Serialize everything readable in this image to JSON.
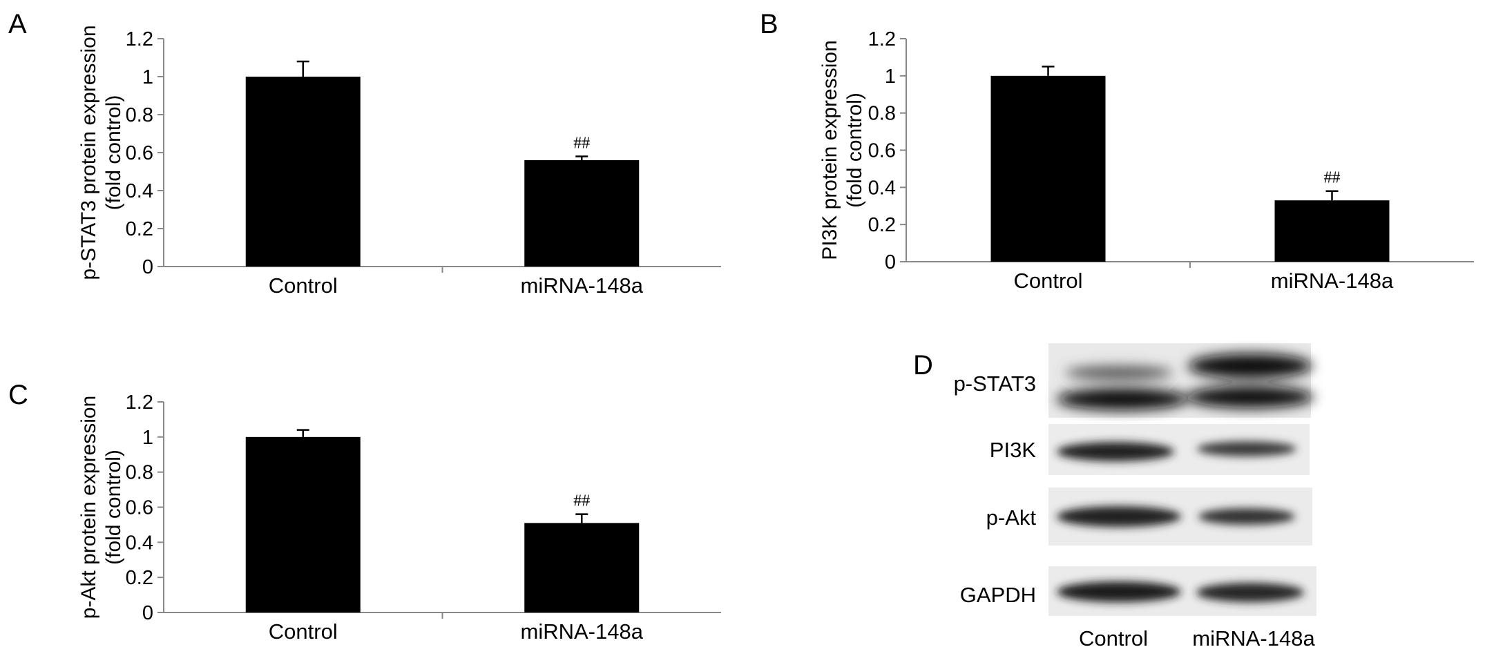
{
  "chart_data": [
    {
      "panel": "A",
      "type": "bar",
      "categories": [
        "Control",
        "miRNA-148a"
      ],
      "values": [
        1.0,
        0.56
      ],
      "errors": [
        0.08,
        0.02
      ],
      "annotations": [
        "",
        "##"
      ],
      "ylabel": [
        "p-STAT3 protein expression",
        "(fold control)"
      ],
      "yticks": [
        "0",
        "0.2",
        "0.4",
        "0.6",
        "0.8",
        "1",
        "1.2"
      ],
      "ylim": [
        0,
        1.2
      ],
      "bar_color": "#000000",
      "grid": false
    },
    {
      "panel": "B",
      "type": "bar",
      "categories": [
        "Control",
        "miRNA-148a"
      ],
      "values": [
        1.0,
        0.33
      ],
      "errors": [
        0.05,
        0.05
      ],
      "annotations": [
        "",
        "##"
      ],
      "ylabel": [
        "PI3K protein expression",
        "(fold control)"
      ],
      "yticks": [
        "0",
        "0.2",
        "0.4",
        "0.6",
        "0.8",
        "1",
        "1.2"
      ],
      "ylim": [
        0,
        1.2
      ],
      "bar_color": "#000000",
      "grid": false
    },
    {
      "panel": "C",
      "type": "bar",
      "categories": [
        "Control",
        "miRNA-148a"
      ],
      "values": [
        1.0,
        0.51
      ],
      "errors": [
        0.04,
        0.05
      ],
      "annotations": [
        "",
        "##"
      ],
      "ylabel": [
        "p-Akt protein expression",
        "(fold control)"
      ],
      "yticks": [
        "0",
        "0.2",
        "0.4",
        "0.6",
        "0.8",
        "1",
        "1.2"
      ],
      "ylim": [
        0,
        1.2
      ],
      "bar_color": "#000000",
      "grid": false
    }
  ],
  "blot": {
    "panel": "D",
    "rows": [
      "p-STAT3",
      "PI3K",
      "p-Akt",
      "GAPDH"
    ],
    "lanes": [
      "Control",
      "miRNA-148a"
    ]
  }
}
